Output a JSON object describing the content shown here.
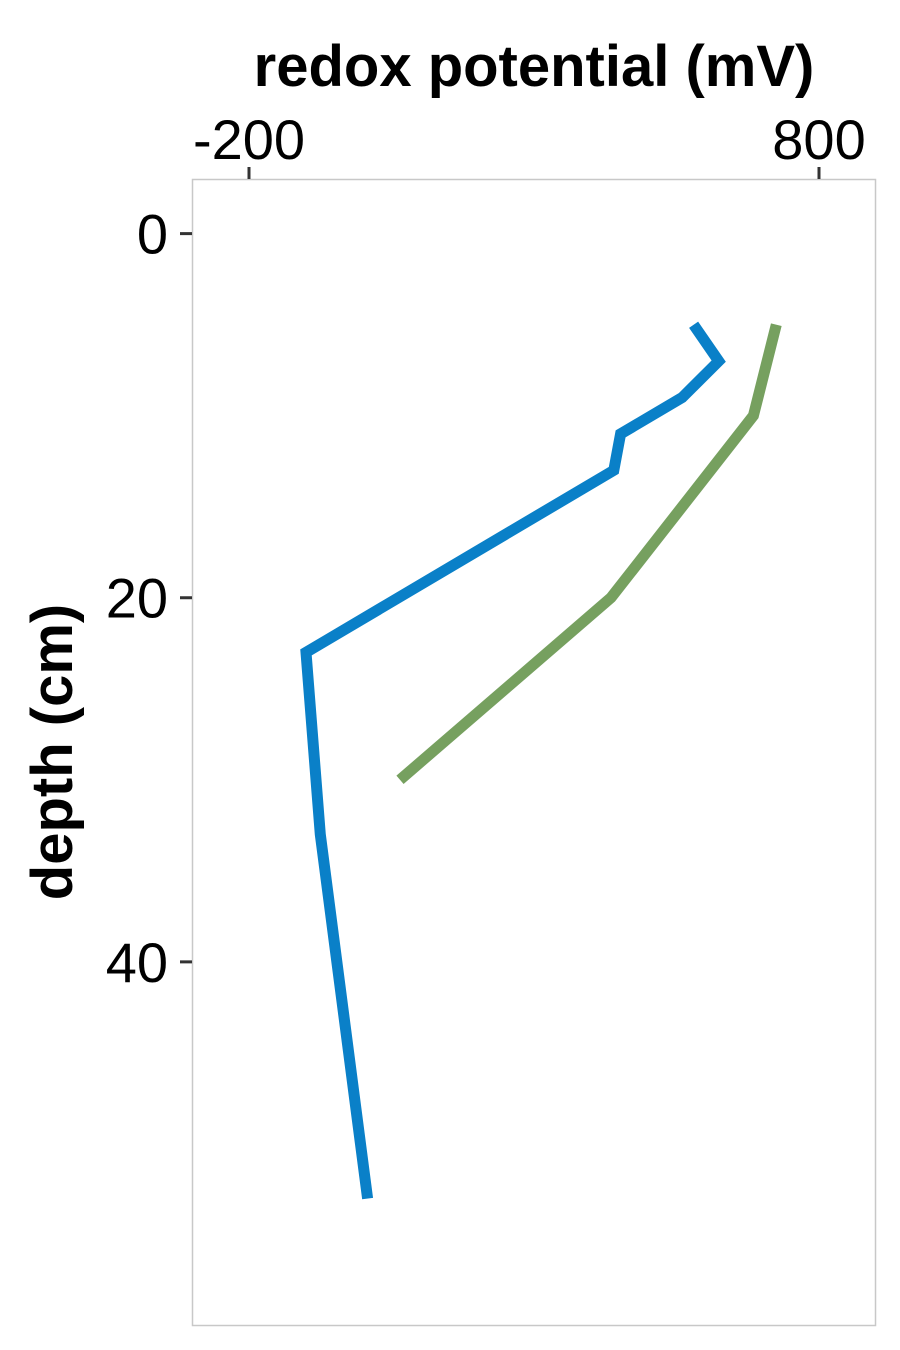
{
  "chart_data": {
    "type": "line",
    "title": "",
    "xlabel": "redox potential (mV)",
    "ylabel": "depth (cm)",
    "x_axis_position": "top",
    "y_axis_reversed": true,
    "xlim": [
      -300,
      900
    ],
    "ylim": [
      -3,
      60
    ],
    "x_ticks": [
      {
        "value": -200,
        "label": "-200"
      },
      {
        "value": 800,
        "label": "800"
      }
    ],
    "y_ticks": [
      {
        "value": 0,
        "label": "0"
      },
      {
        "value": 20,
        "label": "20"
      },
      {
        "value": 40,
        "label": "40"
      }
    ],
    "grid": false,
    "legend": "none",
    "series": [
      {
        "color": "#0a80c8",
        "points": [
          {
            "x": 580,
            "y": 5
          },
          {
            "x": 624,
            "y": 7
          },
          {
            "x": 560,
            "y": 9
          },
          {
            "x": 452,
            "y": 11
          },
          {
            "x": 440,
            "y": 13
          },
          {
            "x": -100,
            "y": 23
          },
          {
            "x": -75,
            "y": 33
          },
          {
            "x": 8,
            "y": 53
          }
        ]
      },
      {
        "color": "#76a05f",
        "points": [
          {
            "x": 725,
            "y": 5
          },
          {
            "x": 685,
            "y": 10
          },
          {
            "x": 435,
            "y": 20
          },
          {
            "x": 65,
            "y": 30
          }
        ]
      }
    ]
  }
}
